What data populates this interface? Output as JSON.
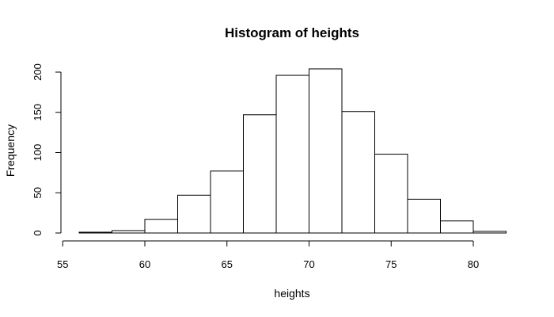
{
  "chart_data": {
    "type": "bar",
    "title": "Histogram of heights",
    "xlabel": "heights",
    "ylabel": "Frequency",
    "bins": [
      {
        "start": 56,
        "end": 58,
        "count": 1
      },
      {
        "start": 58,
        "end": 60,
        "count": 3
      },
      {
        "start": 60,
        "end": 62,
        "count": 17
      },
      {
        "start": 62,
        "end": 64,
        "count": 47
      },
      {
        "start": 64,
        "end": 66,
        "count": 77
      },
      {
        "start": 66,
        "end": 68,
        "count": 147
      },
      {
        "start": 68,
        "end": 70,
        "count": 196
      },
      {
        "start": 70,
        "end": 72,
        "count": 204
      },
      {
        "start": 72,
        "end": 74,
        "count": 151
      },
      {
        "start": 74,
        "end": 76,
        "count": 98
      },
      {
        "start": 76,
        "end": 78,
        "count": 42
      },
      {
        "start": 78,
        "end": 80,
        "count": 15
      },
      {
        "start": 80,
        "end": 82,
        "count": 2
      }
    ],
    "x_ticks": [
      55,
      60,
      65,
      70,
      75,
      80
    ],
    "y_ticks": [
      0,
      50,
      100,
      150,
      200
    ],
    "xlim": [
      55,
      82
    ],
    "ylim": [
      0,
      204
    ],
    "grid": false,
    "bar_fill": "#ffffff",
    "bar_stroke": "#000000"
  }
}
